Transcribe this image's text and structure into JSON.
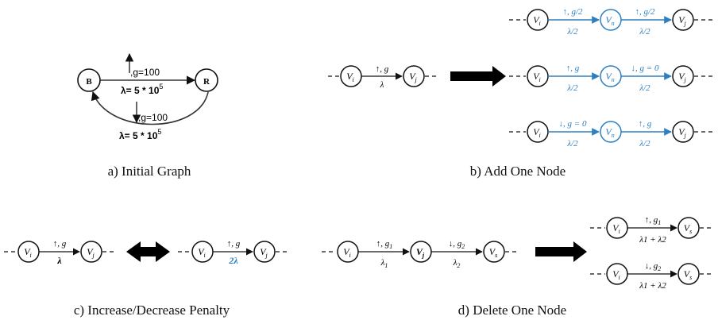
{
  "colors": {
    "black": "#111111",
    "blue": "#2e7fc1"
  },
  "panel_a": {
    "caption": "a) Initial Graph",
    "node_b": "B",
    "node_r": "R",
    "top_edge": {
      "g": ",g=100",
      "lambda": "λ= 5 * 10",
      "exp": "5"
    },
    "bottom_edge": {
      "g": ",g=100",
      "lambda": "λ= 5 * 10",
      "exp": "5"
    }
  },
  "panel_b": {
    "caption": "b) Add One Node",
    "left": {
      "vi": "V",
      "vi_sub": "i",
      "vj": "V",
      "vj_sub": "j",
      "top": "↑, g",
      "bottom": "λ"
    },
    "rows": [
      {
        "vi": "V",
        "vi_sub": "i",
        "vn": "V",
        "vn_sub": "n",
        "vj": "V",
        "vj_sub": "j",
        "top1": "↑, g/2",
        "bot1": "λ/2",
        "top2": "↑, g/2",
        "bot2": "λ/2"
      },
      {
        "vi": "V",
        "vi_sub": "i",
        "vn": "V",
        "vn_sub": "n",
        "vj": "V",
        "vj_sub": "j",
        "top1": "↑, g",
        "bot1": "λ/2",
        "top2": "↓, g = 0",
        "bot2": "λ/2"
      },
      {
        "vi": "V",
        "vi_sub": "i",
        "vn": "V",
        "vn_sub": "n",
        "vj": "V",
        "vj_sub": "j",
        "top1": "↓, g = 0",
        "bot1": "λ/2",
        "top2": "↑, g",
        "bot2": "λ/2"
      }
    ]
  },
  "panel_c": {
    "caption": "c) Increase/Decrease Penalty",
    "left": {
      "vi": "V",
      "vi_sub": "i",
      "vj": "V",
      "vj_sub": "j",
      "top": "↑, g",
      "bottom": "λ"
    },
    "right": {
      "vi": "V",
      "vi_sub": "i",
      "vj": "V",
      "vj_sub": "j",
      "top": "↑, g",
      "bottom": "2λ"
    }
  },
  "panel_d": {
    "caption": "d) Delete One Node",
    "left": {
      "vi": "V",
      "vi_sub": "i",
      "vj": "V",
      "vj_sub": "j",
      "vs": "V",
      "vs_sub": "s",
      "top1": "↑, g",
      "top1_sub": "1",
      "bot1": "λ",
      "bot1_sub": "1",
      "top2": "↓, g",
      "top2_sub": "2",
      "bot2": "λ",
      "bot2_sub": "2"
    },
    "rows": [
      {
        "vi": "V",
        "vi_sub": "i",
        "vs": "V",
        "vs_sub": "s",
        "top": "↑, g",
        "top_sub": "1",
        "bottom": "λ1 + λ2"
      },
      {
        "vi": "V",
        "vi_sub": "i",
        "vs": "V",
        "vs_sub": "s",
        "top": "↓, g",
        "top_sub": "2",
        "bottom": "λ1 + λ2"
      }
    ]
  }
}
